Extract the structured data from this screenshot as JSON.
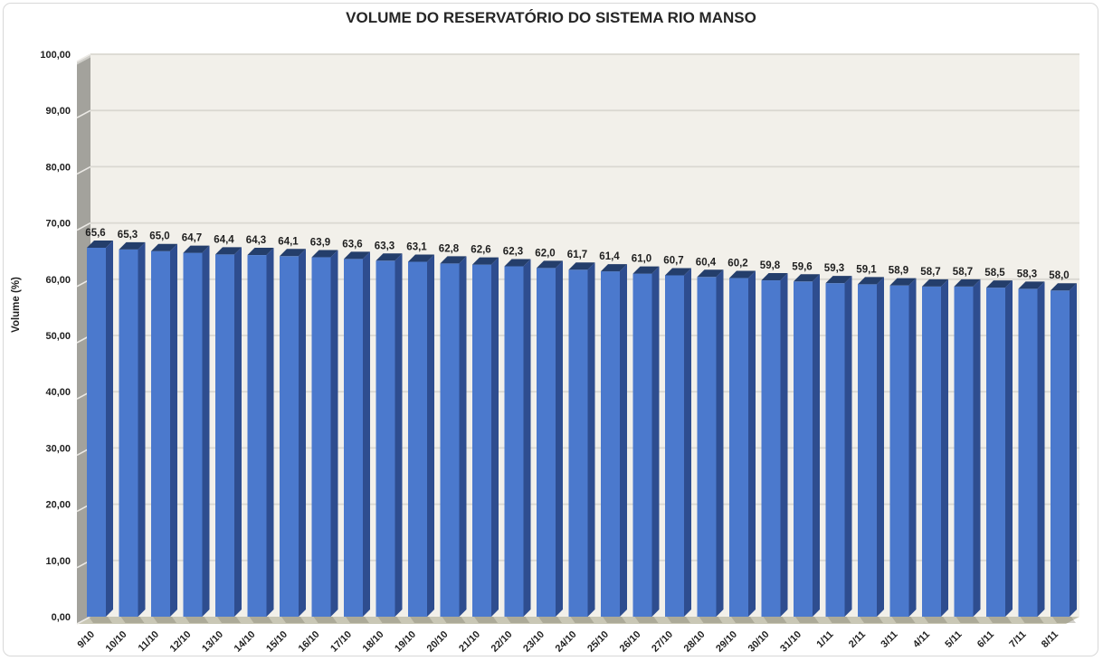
{
  "chart_data": {
    "type": "bar",
    "style": "3d-column",
    "title": "VOLUME DO RESERVATÓRIO DO SISTEMA RIO MANSO",
    "xlabel": "",
    "ylabel": "Volume (%)",
    "ylim": [
      0,
      100
    ],
    "ytick_step": 10,
    "ytick_labels": [
      "0,00",
      "10,00",
      "20,00",
      "30,00",
      "40,00",
      "50,00",
      "60,00",
      "70,00",
      "80,00",
      "90,00",
      "100,00"
    ],
    "grid": true,
    "legend": "none",
    "categories": [
      "9/10",
      "10/10",
      "11/10",
      "12/10",
      "13/10",
      "14/10",
      "15/10",
      "16/10",
      "17/10",
      "18/10",
      "19/10",
      "20/10",
      "21/10",
      "22/10",
      "23/10",
      "24/10",
      "25/10",
      "26/10",
      "27/10",
      "28/10",
      "29/10",
      "30/10",
      "31/10",
      "1/11",
      "2/11",
      "3/11",
      "4/11",
      "5/11",
      "6/11",
      "7/11",
      "8/11"
    ],
    "values": [
      65.6,
      65.3,
      65.0,
      64.7,
      64.4,
      64.3,
      64.1,
      63.9,
      63.6,
      63.3,
      63.1,
      62.8,
      62.6,
      62.3,
      62.0,
      61.7,
      61.4,
      61.0,
      60.7,
      60.4,
      60.2,
      59.8,
      59.6,
      59.3,
      59.1,
      58.9,
      58.7,
      58.7,
      58.5,
      58.3,
      58.0
    ],
    "value_labels": [
      "65,6",
      "65,3",
      "65,0",
      "64,7",
      "64,4",
      "64,3",
      "64,1",
      "63,9",
      "63,6",
      "63,3",
      "63,1",
      "62,8",
      "62,6",
      "62,3",
      "62,0",
      "61,7",
      "61,4",
      "61,0",
      "60,7",
      "60,4",
      "60,2",
      "59,8",
      "59,6",
      "59,3",
      "59,1",
      "58,9",
      "58,7",
      "58,7",
      "58,5",
      "58,3",
      "58,0"
    ],
    "colors": {
      "bar_front": "#4b79cd",
      "bar_side": "#2e4d8f",
      "bar_top": "#243e6b",
      "plot_background": "#f2f0ea",
      "wall": "#a3a29c",
      "wall_bevel": "#cfcec9",
      "floor": "#c9c7b5",
      "gridline": "#dad8d1",
      "wall_gridline": "#eceae6",
      "shadow": "rgba(105,103,85,0.30)",
      "text": "#1f1f1f",
      "chart_border": "#d8d8d8",
      "background": "#ffffff"
    }
  }
}
